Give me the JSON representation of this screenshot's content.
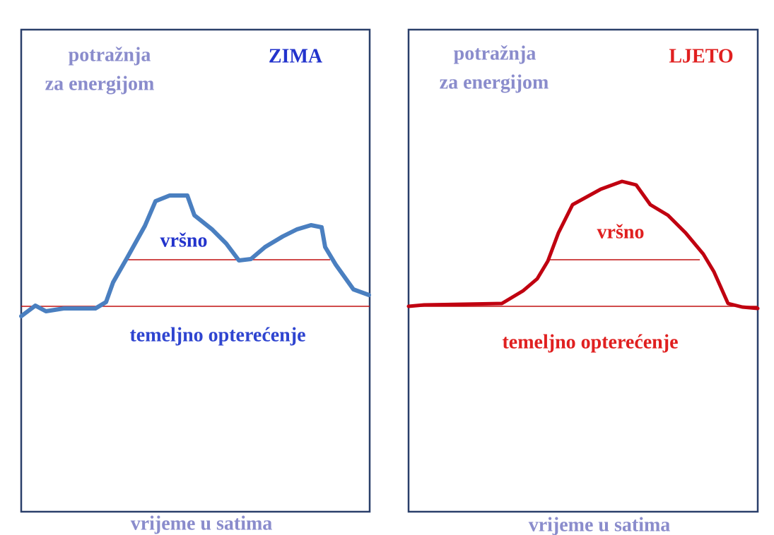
{
  "panels": [
    {
      "y_label": [
        "potražnja",
        "za energijom"
      ],
      "season": "ZIMA",
      "peak_label": "vršno",
      "base_label": "temeljno opterećenje",
      "x_label": "vrijeme u satima"
    },
    {
      "y_label": [
        "potražnja",
        "za energijom"
      ],
      "season": "LJETO",
      "peak_label": "vršno",
      "base_label": "temeljno opterećenje",
      "x_label": "vrijeme u satima"
    }
  ]
}
